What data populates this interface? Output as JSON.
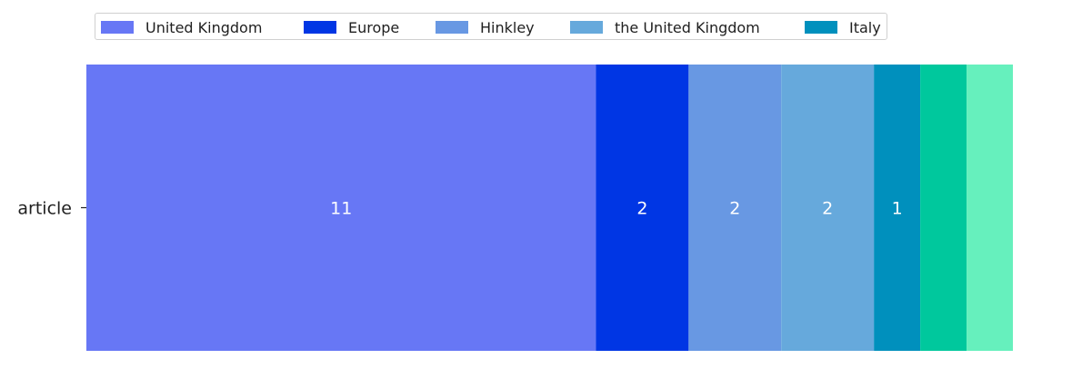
{
  "chart_data": {
    "type": "bar",
    "orientation": "horizontal",
    "stacked": true,
    "categories": [
      "article"
    ],
    "series": [
      {
        "name": "United Kingdom",
        "values": [
          11
        ],
        "color": "#6777f5"
      },
      {
        "name": "Europe",
        "values": [
          2
        ],
        "color": "#0036e4"
      },
      {
        "name": "Hinkley",
        "values": [
          2
        ],
        "color": "#6898e3"
      },
      {
        "name": "the United Kingdom",
        "values": [
          2
        ],
        "color": "#66a9dc"
      },
      {
        "name": "Italy",
        "values": [
          1
        ],
        "color": "#0090bd"
      },
      {
        "name": "",
        "values": [
          1
        ],
        "color": "#00c89d"
      },
      {
        "name": "",
        "values": [
          1
        ],
        "color": "#66f0bd"
      }
    ],
    "data_labels": [
      "11",
      "2",
      "2",
      "2",
      "1",
      "",
      ""
    ],
    "xlim": [
      0,
      20
    ],
    "grid": false,
    "legend_position": "top"
  }
}
